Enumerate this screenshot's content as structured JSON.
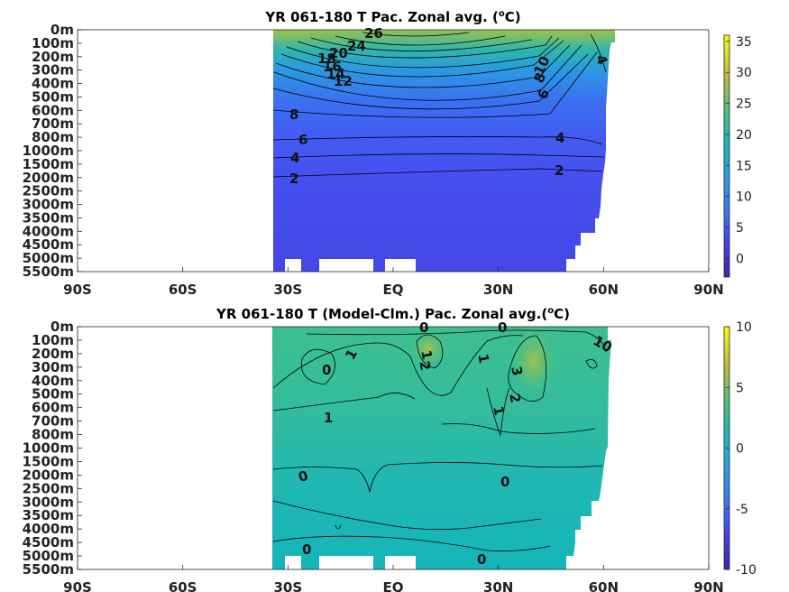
{
  "chart_data": [
    {
      "type": "heatmap",
      "title_main": "YR 061-180 T Pac. Zonal avg. (",
      "title_sup": "o",
      "title_end": "C)",
      "x_ticks": [
        "90S",
        "60S",
        "30S",
        "EQ",
        "30N",
        "60N",
        "90N"
      ],
      "x_values": [
        -90,
        -60,
        -30,
        0,
        30,
        60,
        90
      ],
      "y_ticks": [
        "0m",
        "100m",
        "200m",
        "300m",
        "400m",
        "500m",
        "600m",
        "700m",
        "800m",
        "1000m",
        "1500m",
        "2000m",
        "2500m",
        "3000m",
        "3500m",
        "4000m",
        "4500m",
        "5000m",
        "5500m"
      ],
      "colorbar_ticks": [
        "35",
        "30",
        "25",
        "20",
        "15",
        "10",
        "5",
        "0"
      ],
      "colorbar_range": [
        -3,
        36
      ],
      "contour_labels": [
        "26",
        "24",
        "20",
        "18",
        "16",
        "14",
        "12",
        "10",
        "8",
        "6",
        "4",
        "8",
        "6",
        "4",
        "2",
        "2",
        "4"
      ],
      "colormap": [
        "#3e26a8",
        "#3f58f5",
        "#2d8cf0",
        "#1ab1c8",
        "#3bbd94",
        "#98c050",
        "#e2b532",
        "#f9fb14"
      ]
    },
    {
      "type": "heatmap",
      "title_main": "YR 061-180 T (Model-Clm.) Pac. Zonal avg.(",
      "title_sup": "o",
      "title_end": "C)",
      "x_ticks": [
        "90S",
        "60S",
        "30S",
        "EQ",
        "30N",
        "60N",
        "90N"
      ],
      "x_values": [
        -90,
        -60,
        -30,
        0,
        30,
        60,
        90
      ],
      "y_ticks": [
        "0m",
        "100m",
        "200m",
        "300m",
        "400m",
        "500m",
        "600m",
        "700m",
        "800m",
        "1000m",
        "1500m",
        "2000m",
        "2500m",
        "3000m",
        "3500m",
        "4000m",
        "4500m",
        "5000m",
        "5500m"
      ],
      "colorbar_ticks": [
        "10",
        "5",
        "0",
        "-5",
        "-10"
      ],
      "colorbar_range": [
        -10,
        10
      ],
      "contour_labels": [
        "0",
        "0",
        "1",
        "0",
        "1",
        "1",
        "2",
        "3",
        "2",
        "1",
        "1",
        "0",
        "0",
        "0",
        "0",
        "10"
      ],
      "colormap": [
        "#3e26a8",
        "#3f58f5",
        "#2d8cf0",
        "#1ab1c8",
        "#3bbd94",
        "#98c050",
        "#e2b532",
        "#f9fb14"
      ]
    }
  ]
}
